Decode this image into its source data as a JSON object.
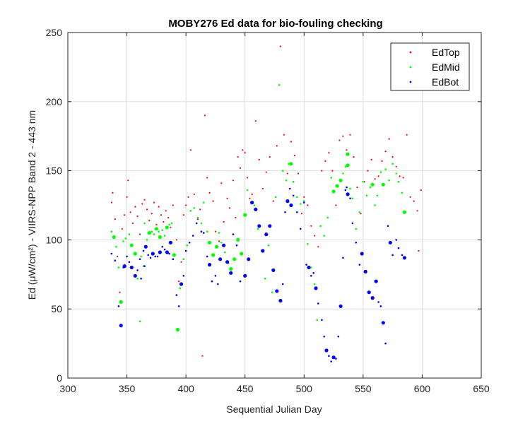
{
  "chart_data": {
    "type": "scatter",
    "title": "MOBY276 Ed data for bio-fouling checking",
    "xlabel": "Sequential Julian Day",
    "ylabel": "Ed (μW/cm²) - VIIRS-NPP Band 2 - 443 nm",
    "xlim": [
      300,
      650
    ],
    "ylim": [
      0,
      250
    ],
    "xticks": [
      300,
      350,
      400,
      450,
      500,
      550,
      600,
      650
    ],
    "yticks": [
      0,
      50,
      100,
      150,
      200,
      250
    ],
    "grid": true,
    "legend_position": "top-right",
    "series": [
      {
        "name": "EdTop",
        "color": "#ff0000",
        "points": [
          [
            337,
            127
          ],
          [
            338,
            134
          ],
          [
            340,
            115
          ],
          [
            342,
            88
          ],
          [
            344,
            62
          ],
          [
            346,
            108
          ],
          [
            348,
            118
          ],
          [
            350,
            131
          ],
          [
            351,
            143
          ],
          [
            353,
            120
          ],
          [
            355,
            112
          ],
          [
            357,
            124
          ],
          [
            359,
            117
          ],
          [
            361,
            104
          ],
          [
            363,
            126
          ],
          [
            365,
            129
          ],
          [
            367,
            122
          ],
          [
            369,
            114
          ],
          [
            371,
            119
          ],
          [
            373,
            127
          ],
          [
            375,
            111
          ],
          [
            377,
            124
          ],
          [
            379,
            118
          ],
          [
            381,
            113
          ],
          [
            383,
            121
          ],
          [
            385,
            116
          ],
          [
            387,
            109
          ],
          [
            389,
            125
          ],
          [
            392,
            100
          ],
          [
            394,
            70
          ],
          [
            396,
            84
          ],
          [
            398,
            118
          ],
          [
            400,
            125
          ],
          [
            402,
            131
          ],
          [
            404,
            165
          ],
          [
            407,
            133
          ],
          [
            410,
            115
          ],
          [
            412,
            122
          ],
          [
            414,
            16
          ],
          [
            416,
            190
          ],
          [
            418,
            145
          ],
          [
            420,
            134
          ],
          [
            423,
            128
          ],
          [
            425,
            106
          ],
          [
            428,
            99
          ],
          [
            430,
            141
          ],
          [
            432,
            113
          ],
          [
            435,
            130
          ],
          [
            437,
            123
          ],
          [
            440,
            143
          ],
          [
            442,
            116
          ],
          [
            444,
            160
          ],
          [
            446,
            152
          ],
          [
            448,
            165
          ],
          [
            450,
            163
          ],
          [
            452,
            145
          ],
          [
            454,
            130
          ],
          [
            456,
            133
          ],
          [
            459,
            186
          ],
          [
            462,
            158
          ],
          [
            465,
            137
          ],
          [
            468,
            149
          ],
          [
            471,
            160
          ],
          [
            474,
            128
          ],
          [
            477,
            168
          ],
          [
            480,
            240
          ],
          [
            483,
            176
          ],
          [
            486,
            148
          ],
          [
            489,
            171
          ],
          [
            492,
            161
          ],
          [
            495,
            148
          ],
          [
            498,
            119
          ],
          [
            500,
            131
          ],
          [
            503,
            125
          ],
          [
            506,
            110
          ],
          [
            509,
            103
          ],
          [
            512,
            95
          ],
          [
            515,
            150
          ],
          [
            518,
            157
          ],
          [
            521,
            163
          ],
          [
            524,
            150
          ],
          [
            527,
            125
          ],
          [
            530,
            172
          ],
          [
            533,
            175
          ],
          [
            536,
            165
          ],
          [
            539,
            176
          ],
          [
            542,
            160
          ],
          [
            545,
            138
          ],
          [
            548,
            119
          ],
          [
            551,
            142
          ],
          [
            554,
            150
          ],
          [
            557,
            158
          ],
          [
            560,
            144
          ],
          [
            563,
            146
          ],
          [
            566,
            157
          ],
          [
            569,
            164
          ],
          [
            572,
            173
          ],
          [
            575,
            160
          ],
          [
            578,
            153
          ],
          [
            581,
            146
          ],
          [
            584,
            145
          ],
          [
            587,
            176
          ],
          [
            590,
            131
          ],
          [
            593,
            128
          ],
          [
            596,
            121
          ],
          [
            599,
            136
          ],
          [
            597,
            92
          ]
        ]
      },
      {
        "name": "EdMid",
        "color": "#00ff00",
        "points": [
          [
            337,
            106
          ],
          [
            339,
            102
          ],
          [
            341,
            95
          ],
          [
            343,
            80
          ],
          [
            345,
            55
          ],
          [
            347,
            99
          ],
          [
            349,
            101
          ],
          [
            352,
            104
          ],
          [
            354,
            96
          ],
          [
            357,
            90
          ],
          [
            359,
            72
          ],
          [
            361,
            41
          ],
          [
            362,
            88
          ],
          [
            364,
            81
          ],
          [
            365,
            112
          ],
          [
            367,
            100
          ],
          [
            369,
            105
          ],
          [
            371,
            106
          ],
          [
            373,
            104
          ],
          [
            375,
            108
          ],
          [
            377,
            106
          ],
          [
            378,
            102
          ],
          [
            380,
            107
          ],
          [
            382,
            103
          ],
          [
            384,
            109
          ],
          [
            386,
            111
          ],
          [
            388,
            112
          ],
          [
            390,
            89
          ],
          [
            393,
            35
          ],
          [
            395,
            65
          ],
          [
            398,
            86
          ],
          [
            401,
            96
          ],
          [
            404,
            121
          ],
          [
            407,
            123
          ],
          [
            410,
            116
          ],
          [
            413,
            112
          ],
          [
            415,
            127
          ],
          [
            418,
            106
          ],
          [
            420,
            98
          ],
          [
            423,
            89
          ],
          [
            426,
            95
          ],
          [
            428,
            105
          ],
          [
            430,
            98
          ],
          [
            433,
            91
          ],
          [
            436,
            83
          ],
          [
            438,
            79
          ],
          [
            441,
            86
          ],
          [
            444,
            100
          ],
          [
            447,
            90
          ],
          [
            450,
            118
          ],
          [
            452,
            136
          ],
          [
            455,
            127
          ],
          [
            458,
            125
          ],
          [
            461,
            108
          ],
          [
            464,
            92
          ],
          [
            467,
            72
          ],
          [
            470,
            96
          ],
          [
            473,
            62
          ],
          [
            476,
            131
          ],
          [
            479,
            212
          ],
          [
            482,
            150
          ],
          [
            485,
            143
          ],
          [
            487,
            155
          ],
          [
            489,
            155
          ],
          [
            491,
            142
          ],
          [
            494,
            131
          ],
          [
            497,
            126
          ],
          [
            500,
            128
          ],
          [
            503,
            97
          ],
          [
            506,
            80
          ],
          [
            509,
            68
          ],
          [
            511,
            42
          ],
          [
            514,
            110
          ],
          [
            517,
            103
          ],
          [
            520,
            116
          ],
          [
            523,
            145
          ],
          [
            525,
            135
          ],
          [
            528,
            139
          ],
          [
            531,
            143
          ],
          [
            533,
            148
          ],
          [
            535,
            153
          ],
          [
            537,
            154
          ],
          [
            537,
            162
          ],
          [
            539,
            137
          ],
          [
            541,
            130
          ],
          [
            544,
            108
          ],
          [
            547,
            120
          ],
          [
            550,
            142
          ],
          [
            553,
            132
          ],
          [
            556,
            138
          ],
          [
            558,
            140
          ],
          [
            560,
            125
          ],
          [
            562,
            132
          ],
          [
            565,
            149
          ],
          [
            567,
            140
          ],
          [
            569,
            151
          ],
          [
            572,
            143
          ],
          [
            575,
            155
          ],
          [
            578,
            148
          ],
          [
            580,
            142
          ],
          [
            583,
            134
          ],
          [
            585,
            120
          ]
        ]
      },
      {
        "name": "EdBot",
        "color": "#0000ff",
        "points": [
          [
            337,
            90
          ],
          [
            340,
            85
          ],
          [
            343,
            52
          ],
          [
            345,
            38
          ],
          [
            347,
            80
          ],
          [
            348,
            81
          ],
          [
            350,
            88
          ],
          [
            352,
            84
          ],
          [
            354,
            80
          ],
          [
            357,
            74
          ],
          [
            359,
            78
          ],
          [
            361,
            86
          ],
          [
            362,
            72
          ],
          [
            364,
            92
          ],
          [
            365,
            81
          ],
          [
            366,
            95
          ],
          [
            368,
            89
          ],
          [
            370,
            87
          ],
          [
            372,
            90
          ],
          [
            374,
            88
          ],
          [
            376,
            88
          ],
          [
            378,
            91
          ],
          [
            380,
            95
          ],
          [
            382,
            93
          ],
          [
            384,
            91
          ],
          [
            386,
            90
          ],
          [
            387,
            98
          ],
          [
            389,
            86
          ],
          [
            392,
            60
          ],
          [
            394,
            52
          ],
          [
            396,
            68
          ],
          [
            398,
            74
          ],
          [
            400,
            92
          ],
          [
            403,
            98
          ],
          [
            406,
            103
          ],
          [
            409,
            112
          ],
          [
            413,
            106
          ],
          [
            415,
            105
          ],
          [
            418,
            88
          ],
          [
            420,
            82
          ],
          [
            422,
            70
          ],
          [
            425,
            74
          ],
          [
            427,
            68
          ],
          [
            429,
            86
          ],
          [
            432,
            96
          ],
          [
            435,
            84
          ],
          [
            438,
            76
          ],
          [
            440,
            104
          ],
          [
            443,
            96
          ],
          [
            446,
            70
          ],
          [
            450,
            74
          ],
          [
            453,
            86
          ],
          [
            456,
            127
          ],
          [
            459,
            122
          ],
          [
            462,
            110
          ],
          [
            465,
            92
          ],
          [
            468,
            104
          ],
          [
            471,
            110
          ],
          [
            474,
            78
          ],
          [
            477,
            63
          ],
          [
            480,
            56
          ],
          [
            482,
            68
          ],
          [
            484,
            120
          ],
          [
            486,
            128
          ],
          [
            488,
            137
          ],
          [
            489,
            125
          ],
          [
            491,
            132
          ],
          [
            494,
            120
          ],
          [
            497,
            108
          ],
          [
            500,
            127
          ],
          [
            502,
            82
          ],
          [
            504,
            80
          ],
          [
            506,
            74
          ],
          [
            508,
            76
          ],
          [
            510,
            65
          ],
          [
            512,
            54
          ],
          [
            515,
            42
          ],
          [
            517,
            30
          ],
          [
            519,
            20
          ],
          [
            521,
            16
          ],
          [
            523,
            12
          ],
          [
            525,
            15
          ],
          [
            527,
            14
          ],
          [
            529,
            30
          ],
          [
            531,
            52
          ],
          [
            533,
            87
          ],
          [
            535,
            136
          ],
          [
            536,
            138
          ],
          [
            537,
            133
          ],
          [
            539,
            130
          ],
          [
            541,
            112
          ],
          [
            544,
            98
          ],
          [
            547,
            82
          ],
          [
            549,
            90
          ],
          [
            552,
            77
          ],
          [
            555,
            62
          ],
          [
            558,
            58
          ],
          [
            561,
            70
          ],
          [
            563,
            55
          ],
          [
            565,
            52
          ],
          [
            567,
            40
          ],
          [
            569,
            25
          ],
          [
            571,
            110
          ],
          [
            573,
            98
          ],
          [
            575,
            89
          ],
          [
            578,
            100
          ],
          [
            580,
            94
          ],
          [
            583,
            89
          ],
          [
            585,
            87
          ]
        ]
      }
    ]
  }
}
